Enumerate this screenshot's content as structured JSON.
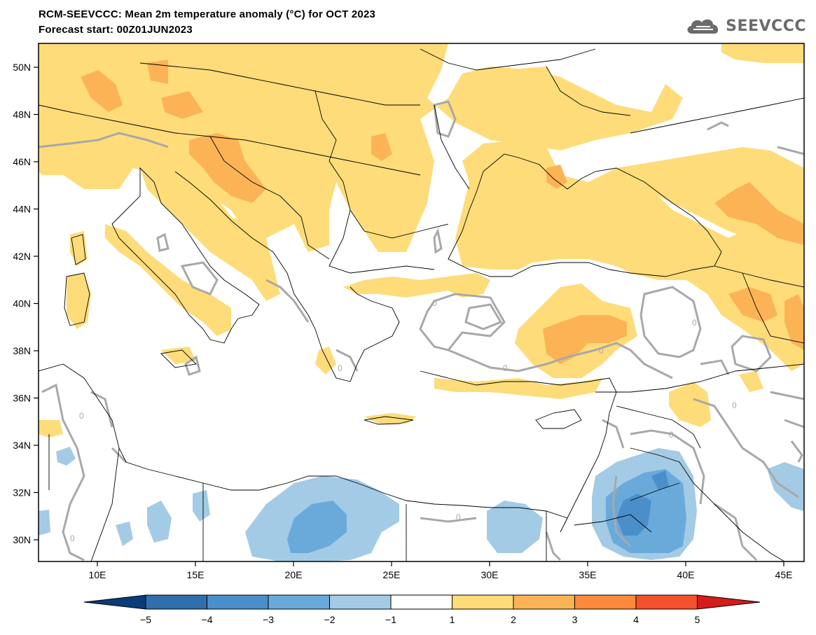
{
  "title": "RCM-SEEVCCC: Mean 2m temperature anomaly (°C) for OCT 2023",
  "subtitle": "Forecast start: 00Z01JUN2023",
  "logo_text": "SEEVCCC",
  "lat_labels": [
    "50N",
    "48N",
    "46N",
    "44N",
    "42N",
    "40N",
    "38N",
    "36N",
    "34N",
    "32N",
    "30N"
  ],
  "lon_labels": [
    "10E",
    "15E",
    "20E",
    "25E",
    "30E",
    "35E",
    "40E",
    "45E"
  ],
  "colorbar": {
    "labels": [
      "-5",
      "-4",
      "-3",
      "-2",
      "-1",
      "1",
      "2",
      "3",
      "4",
      "5"
    ],
    "colors": {
      "below_min": "#0b3c78",
      "neg5_neg4": "#2f6fab",
      "neg4_neg3": "#4a8fc9",
      "neg3_neg2": "#6aaadb",
      "neg2_neg1": "#a3cbe6",
      "neg1_pos1": "#ffffff",
      "pos1_pos2": "#fedc7a",
      "pos2_pos3": "#fcb356",
      "pos3_pos4": "#fc8a3c",
      "pos4_pos5": "#f4502a",
      "above_max": "#d41c1c"
    }
  },
  "contour_label": "0",
  "colors": {
    "contour": "#a8a8a8",
    "border": "#000000"
  }
}
